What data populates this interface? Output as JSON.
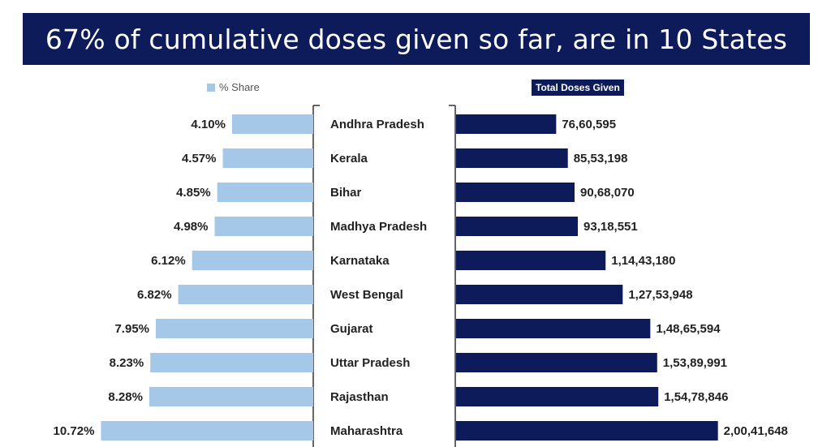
{
  "chart_data": {
    "type": "bar",
    "title": "67% of cumulative doses given so far, are in 10 States",
    "categories": [
      "Andhra Pradesh",
      "Kerala",
      "Bihar",
      "Madhya Pradesh",
      "Karnataka",
      "West Bengal",
      "Gujarat",
      "Uttar Pradesh",
      "Rajasthan",
      "Maharashtra"
    ],
    "series": [
      {
        "name": "% Share",
        "values": [
          4.1,
          4.57,
          4.85,
          4.98,
          6.12,
          6.82,
          7.95,
          8.23,
          8.28,
          10.72
        ],
        "labels": [
          "4.10%",
          "4.57%",
          "4.85%",
          "4.98%",
          "6.12%",
          "6.82%",
          "7.95%",
          "8.23%",
          "8.28%",
          "10.72%"
        ],
        "color": "#a6c8e8"
      },
      {
        "name": "Total Doses Given",
        "values": [
          7660595,
          8553198,
          9068070,
          9318551,
          11443180,
          12753948,
          14865594,
          15389991,
          15478846,
          20041648
        ],
        "labels": [
          "76,60,595",
          "85,53,198",
          "90,68,070",
          "93,18,551",
          "1,14,43,180",
          "1,27,53,948",
          "1,48,65,594",
          "1,53,89,991",
          "1,54,78,846",
          "2,00,41,648"
        ],
        "color": "#0d1b5a"
      }
    ]
  }
}
